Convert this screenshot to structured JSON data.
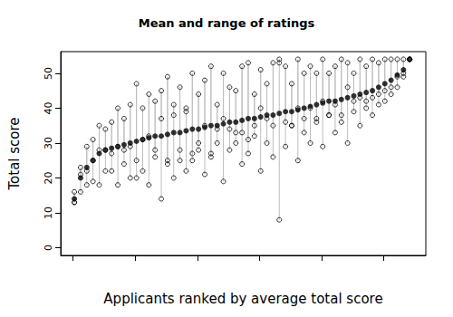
{
  "chart_data": {
    "type": "scatter",
    "title": "Mean and range of ratings",
    "x_label": "Applicants ranked by average total score",
    "y_label": "Total score",
    "x": [
      1,
      6,
      11,
      16,
      21,
      26,
      31,
      36,
      41,
      46,
      51,
      56,
      61,
      66,
      71,
      76,
      81,
      86,
      91,
      96,
      101,
      106,
      111,
      116,
      121,
      126,
      131,
      136,
      141,
      146,
      151,
      156,
      161,
      166,
      171,
      176,
      181,
      186,
      191,
      196,
      201,
      206,
      211,
      216,
      221,
      226,
      231,
      236,
      241,
      246,
      251,
      256,
      261,
      266,
      271
    ],
    "values": [
      14,
      20,
      23,
      25,
      27,
      28,
      28.5,
      29,
      29.5,
      30,
      30.5,
      31,
      31.5,
      32,
      32,
      32.5,
      33,
      33,
      33.5,
      34,
      34,
      34.5,
      35,
      35,
      35.5,
      36,
      36,
      36.5,
      37,
      37,
      37.5,
      38,
      38,
      38.5,
      39,
      39,
      39.5,
      40,
      40.5,
      41,
      41.5,
      42,
      42,
      42.5,
      43,
      43.5,
      44,
      44.5,
      45,
      46,
      47,
      48,
      49.5,
      51,
      54
    ],
    "ratings": [
      [
        13,
        16,
        13
      ],
      [
        16,
        23,
        21
      ],
      [
        18,
        29,
        22
      ],
      [
        19,
        31,
        25
      ],
      [
        18,
        35,
        28
      ],
      [
        22,
        34,
        28
      ],
      [
        22,
        36,
        27
      ],
      [
        18,
        40,
        29
      ],
      [
        24,
        37,
        28
      ],
      [
        20,
        41,
        29
      ],
      [
        25,
        47,
        20
      ],
      [
        22,
        40,
        31
      ],
      [
        18,
        44,
        32
      ],
      [
        26,
        42,
        28
      ],
      [
        14,
        45,
        37
      ],
      [
        24,
        49,
        25
      ],
      [
        20,
        41,
        38
      ],
      [
        28,
        46,
        25
      ],
      [
        22,
        39,
        40
      ],
      [
        25,
        50,
        27
      ],
      [
        30,
        44,
        28
      ],
      [
        21,
        48,
        35
      ],
      [
        26,
        52,
        27
      ],
      [
        30,
        41,
        34
      ],
      [
        19,
        50,
        37
      ],
      [
        28,
        46,
        34
      ],
      [
        33,
        45,
        30
      ],
      [
        24,
        52,
        33
      ],
      [
        27,
        53,
        31
      ],
      [
        32,
        44,
        35
      ],
      [
        22,
        51,
        40
      ],
      [
        30,
        47,
        37
      ],
      [
        26,
        53,
        35
      ],
      [
        8,
        54,
        53
      ],
      [
        29,
        52,
        36
      ],
      [
        35,
        47,
        35
      ],
      [
        25,
        54,
        40
      ],
      [
        33,
        50,
        37
      ],
      [
        30,
        52,
        40
      ],
      [
        36,
        50,
        37
      ],
      [
        29,
        54,
        42
      ],
      [
        38,
        50,
        38
      ],
      [
        33,
        52,
        41
      ],
      [
        36,
        54,
        38
      ],
      [
        30,
        53,
        46
      ],
      [
        39,
        50,
        42
      ],
      [
        35,
        54,
        43
      ],
      [
        40,
        52,
        42
      ],
      [
        38,
        54,
        43
      ],
      [
        41,
        53,
        44
      ],
      [
        42,
        54,
        45
      ],
      [
        44,
        54,
        46
      ],
      [
        46,
        54,
        49
      ],
      [
        49,
        54,
        50
      ],
      [
        54,
        54,
        54
      ]
    ],
    "color": "#000000",
    "xlim": [
      -10,
      284
    ],
    "xticks": [
      0,
      50,
      100,
      150,
      200,
      250
    ],
    "ylim": [
      -2.2,
      56.2
    ],
    "yticks": [
      0,
      10,
      20,
      30,
      40,
      50
    ],
    "tick_labels": "y",
    "grid": false
  }
}
